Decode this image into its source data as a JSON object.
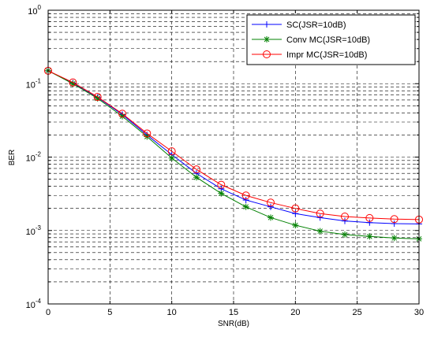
{
  "chart_data": {
    "type": "line",
    "title": "",
    "xlabel": "SNR(dB)",
    "ylabel": "BER",
    "xlim": [
      0,
      30
    ],
    "ylim": [
      0.0001,
      1
    ],
    "yscale": "log",
    "grid": true,
    "legend_position": "top-right",
    "x_ticks": [
      "0",
      "5",
      "10",
      "15",
      "20",
      "25",
      "30"
    ],
    "y_ticks": [
      {
        "base": "10",
        "exp": "-4",
        "value": 0.0001
      },
      {
        "base": "10",
        "exp": "-3",
        "value": 0.001
      },
      {
        "base": "10",
        "exp": "-2",
        "value": 0.01
      },
      {
        "base": "10",
        "exp": "-1",
        "value": 0.1
      },
      {
        "base": "10",
        "exp": "0",
        "value": 1
      }
    ],
    "x": [
      0,
      2,
      4,
      6,
      8,
      10,
      12,
      14,
      16,
      18,
      20,
      22,
      24,
      26,
      28,
      30
    ],
    "series": [
      {
        "name": "SC(JSR=10dB)",
        "color": "#0000ff",
        "marker": "plus",
        "values": [
          0.15,
          0.102,
          0.065,
          0.038,
          0.02,
          0.0108,
          0.006,
          0.0037,
          0.0026,
          0.0021,
          0.0017,
          0.0015,
          0.00135,
          0.00128,
          0.00124,
          0.00123
        ]
      },
      {
        "name": "Conv MC(JSR=10dB)",
        "color": "#008000",
        "marker": "star",
        "values": [
          0.15,
          0.1,
          0.063,
          0.036,
          0.019,
          0.0097,
          0.0053,
          0.0032,
          0.0021,
          0.0015,
          0.00118,
          0.00098,
          0.00088,
          0.00083,
          0.00079,
          0.00077
        ]
      },
      {
        "name": "Impr MC(JSR=10dB)",
        "color": "#ff0000",
        "marker": "circle",
        "values": [
          0.15,
          0.104,
          0.066,
          0.039,
          0.021,
          0.012,
          0.0068,
          0.0042,
          0.003,
          0.0024,
          0.002,
          0.0017,
          0.00155,
          0.00148,
          0.00143,
          0.00141
        ]
      }
    ]
  }
}
